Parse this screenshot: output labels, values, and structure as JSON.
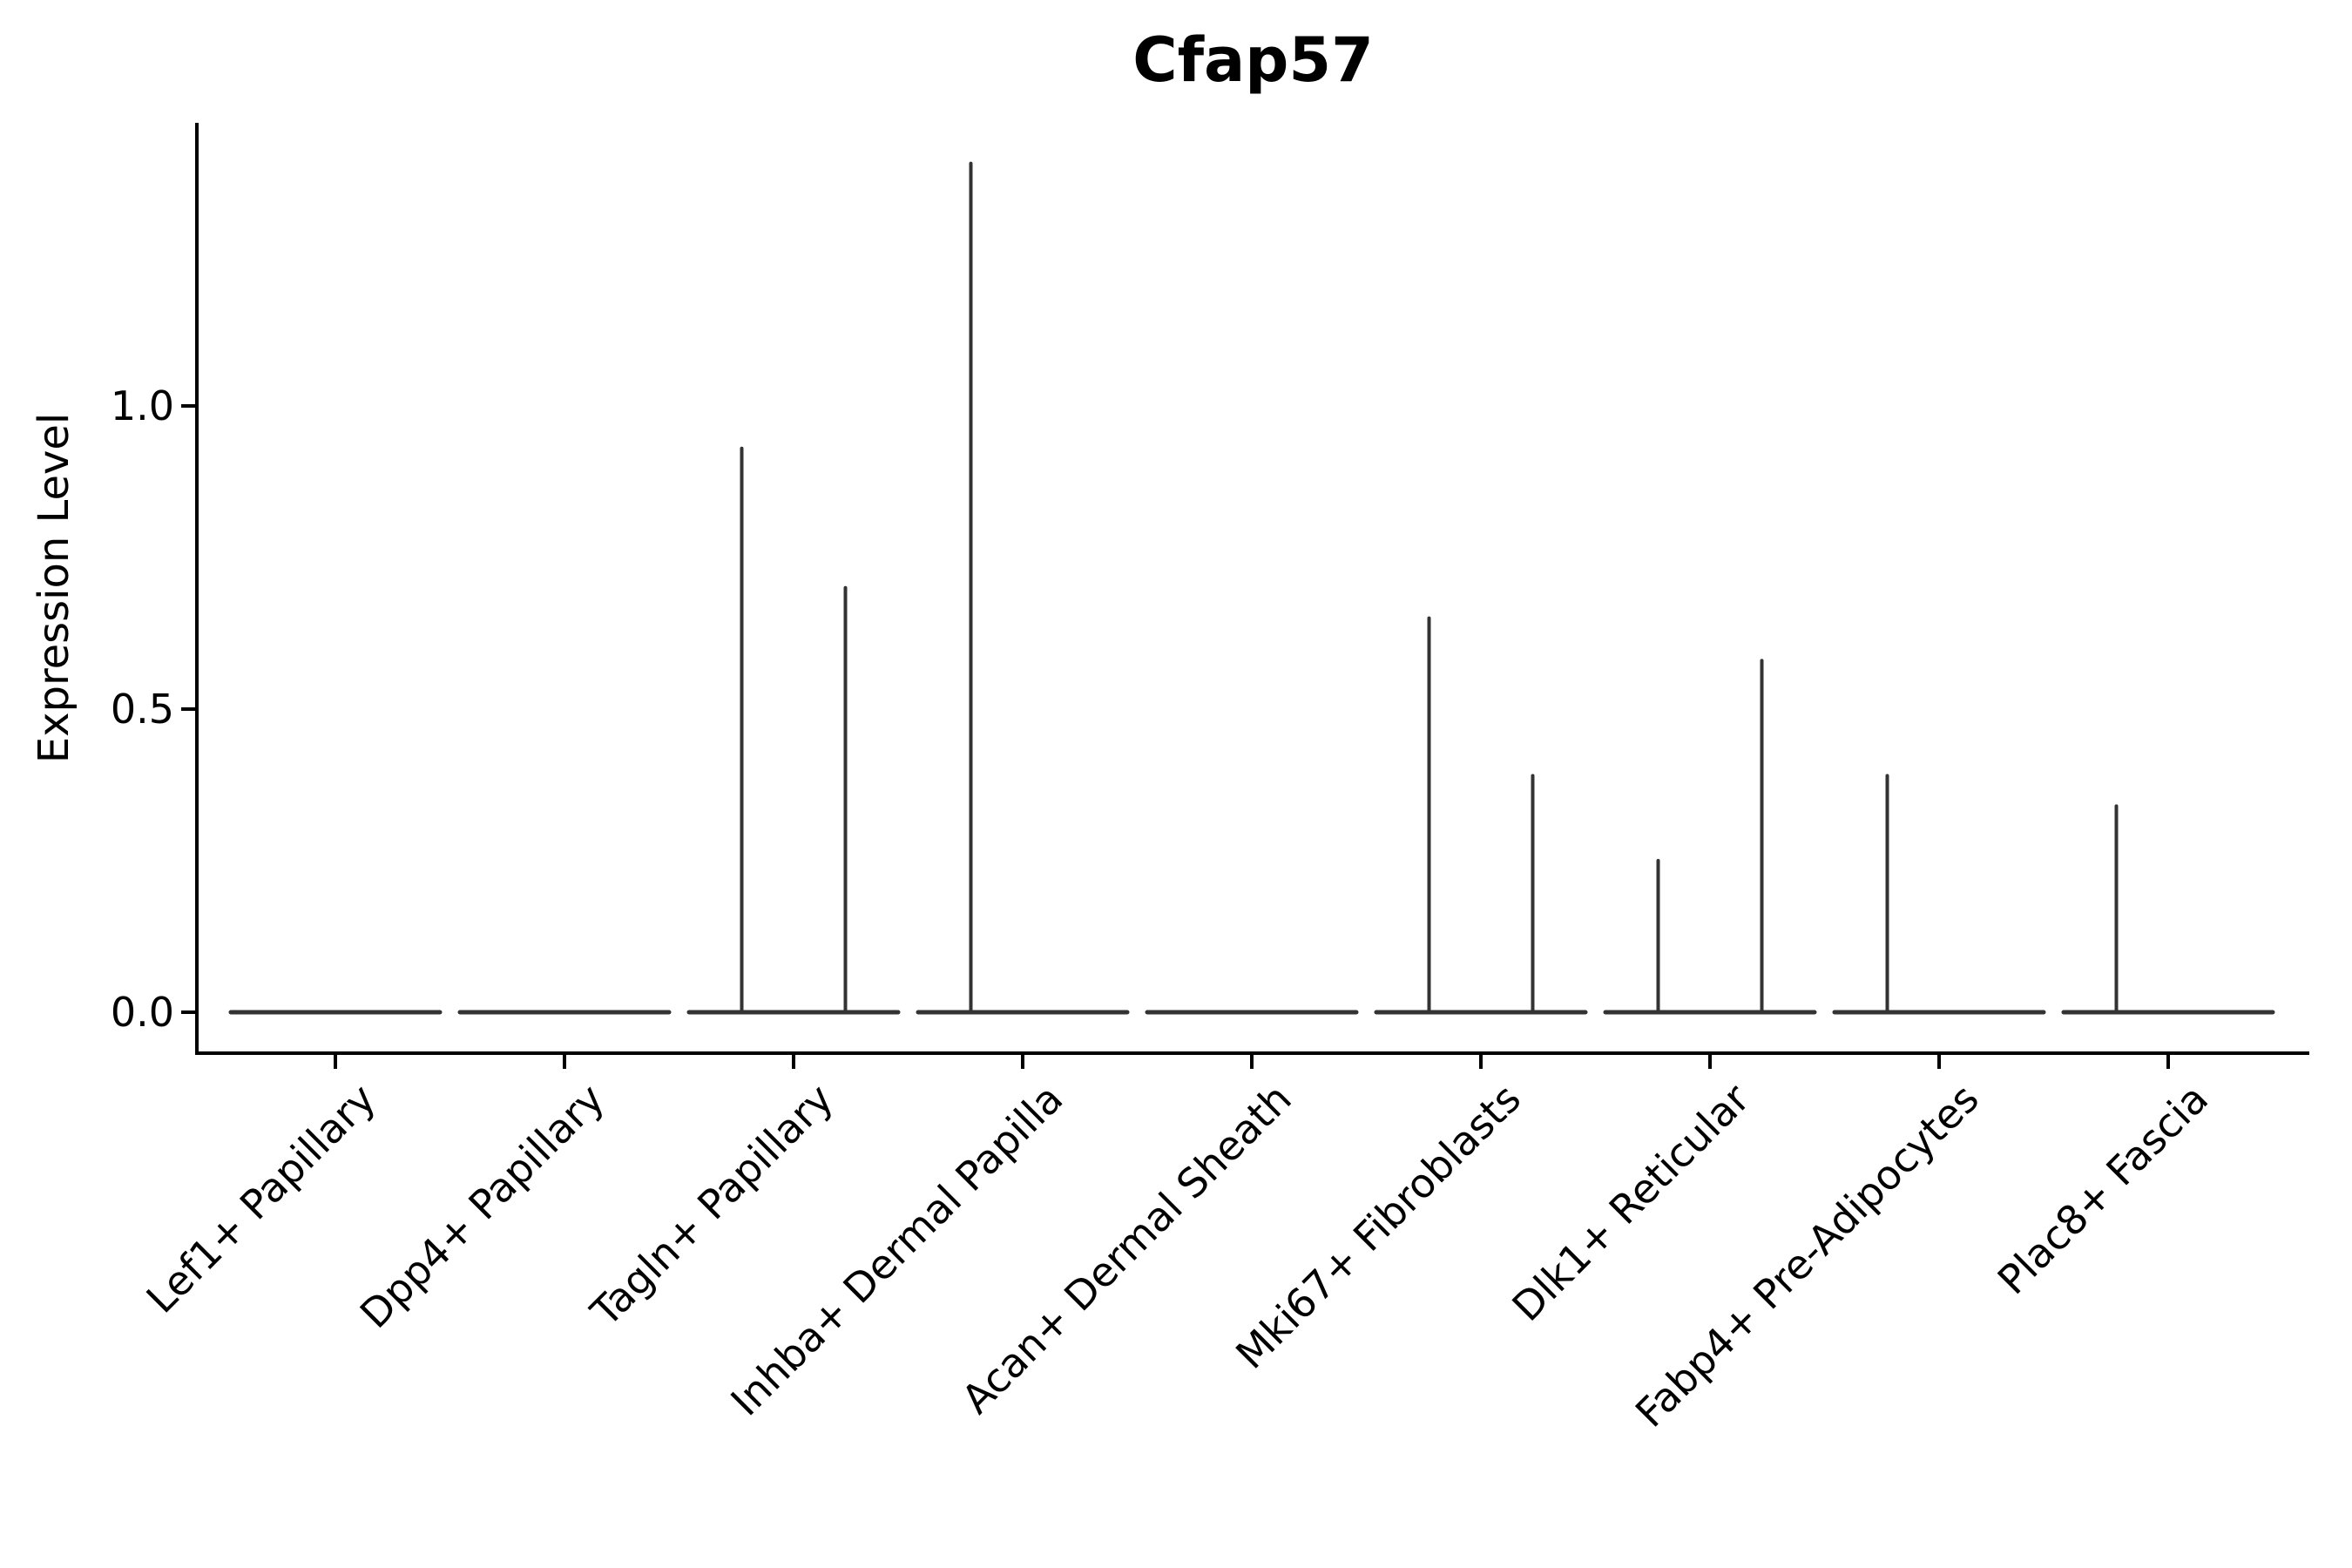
{
  "chart_data": {
    "type": "violin",
    "title": "Cfap57",
    "ylabel": "Expression Level",
    "xlabel": "",
    "categories": [
      "Lef1+ Papillary",
      "Dpp4+ Papillary",
      "Tagln+ Papillary",
      "Inhba+ Dermal Papilla",
      "Acan+ Dermal Sheath",
      "Mki67+ Fibroblasts",
      "Dlk1+ Reticular",
      "Fabp4+ Pre-Adipocytes",
      "Plac8+ Fascia"
    ],
    "series": [
      {
        "name": "left-subviolin",
        "position_offset": -0.5,
        "max_expression": [
          null,
          null,
          0.93,
          1.4,
          null,
          0.65,
          0.25,
          0.39,
          0.34
        ]
      },
      {
        "name": "right-subviolin",
        "position_offset": 0.5,
        "max_expression": [
          null,
          null,
          0.7,
          null,
          null,
          0.39,
          0.58,
          null,
          null
        ]
      }
    ],
    "yticks": [
      "0.0",
      "0.5",
      "1.0"
    ],
    "ytick_values": [
      0.0,
      0.5,
      1.0
    ],
    "ylim": [
      -0.07,
      1.47
    ],
    "grid": false,
    "legend_position": "none",
    "violin_color": "#333333",
    "axis_color": "#000000",
    "text_color": "#000000",
    "background_color": "#ffffff"
  }
}
